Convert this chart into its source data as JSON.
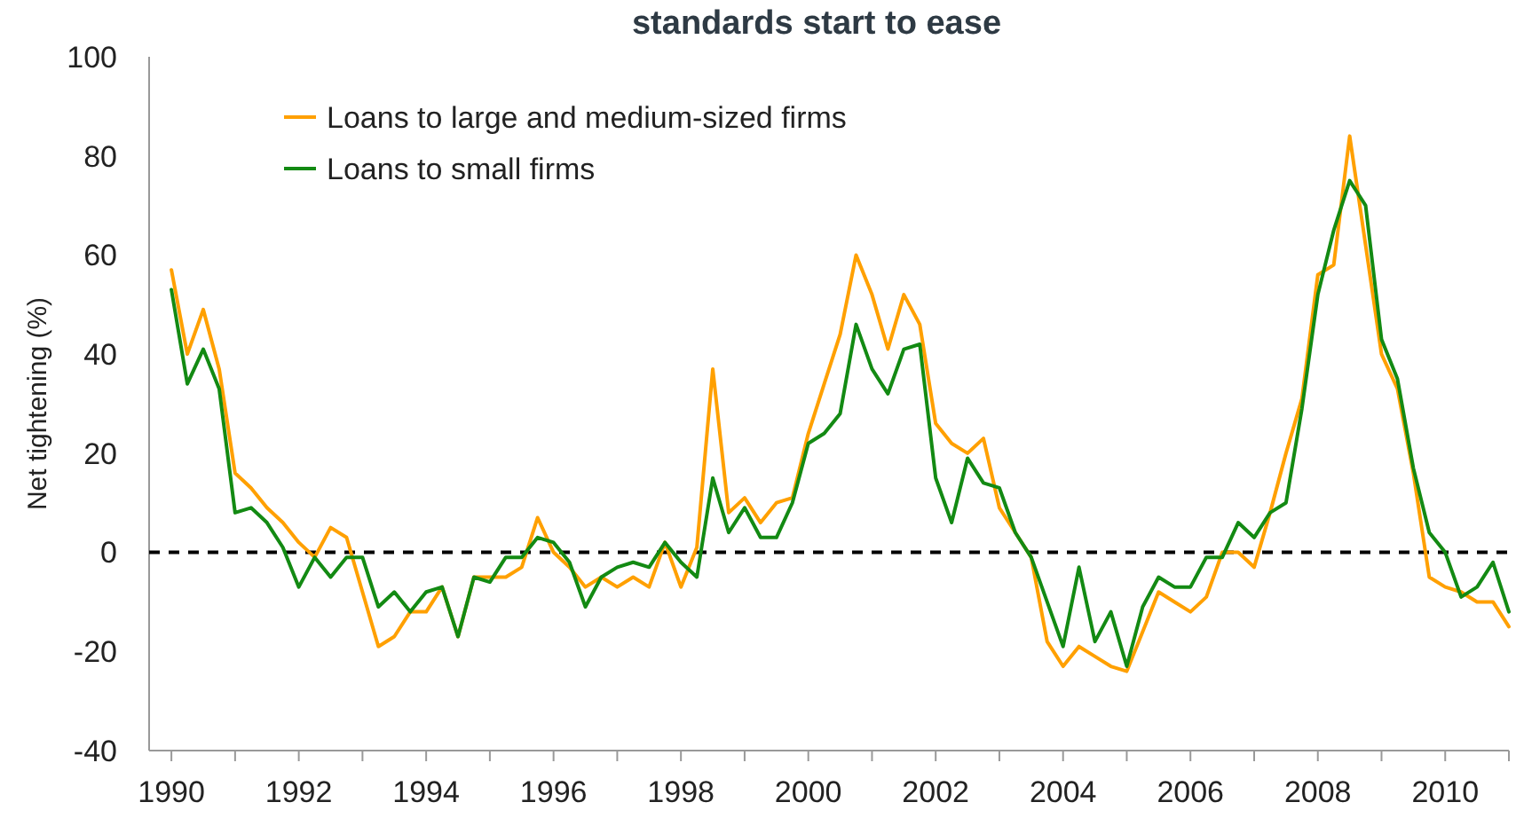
{
  "chart_data": {
    "type": "line",
    "title": "standards start to ease",
    "ylabel": "Net tightening (%)",
    "x": [
      1990,
      1990.25,
      1990.5,
      1990.75,
      1991,
      1991.25,
      1991.5,
      1991.75,
      1992,
      1992.25,
      1992.5,
      1992.75,
      1993,
      1993.25,
      1993.5,
      1993.75,
      1994,
      1994.25,
      1994.5,
      1994.75,
      1995,
      1995.25,
      1995.5,
      1995.75,
      1996,
      1996.25,
      1996.5,
      1996.75,
      1997,
      1997.25,
      1997.5,
      1997.75,
      1998,
      1998.25,
      1998.5,
      1998.75,
      1999,
      1999.25,
      1999.5,
      1999.75,
      2000,
      2000.25,
      2000.5,
      2000.75,
      2001,
      2001.25,
      2001.5,
      2001.75,
      2002,
      2002.25,
      2002.5,
      2002.75,
      2003,
      2003.25,
      2003.5,
      2003.75,
      2004,
      2004.25,
      2004.5,
      2004.75,
      2005,
      2005.25,
      2005.5,
      2005.75,
      2006,
      2006.25,
      2006.5,
      2006.75,
      2007,
      2007.25,
      2007.5,
      2007.75,
      2008,
      2008.25,
      2008.5,
      2008.75,
      2009,
      2009.25,
      2009.5,
      2009.75,
      2010,
      2010.25,
      2010.5,
      2010.75,
      2011
    ],
    "series": [
      {
        "name": "Loans to large and medium-sized firms",
        "color": "#ffa000",
        "values": [
          57,
          40,
          49,
          37,
          16,
          13,
          9,
          6,
          2,
          -1,
          5,
          3,
          -8,
          -19,
          -17,
          -12,
          -12,
          -7,
          -17,
          -5,
          -5,
          -5,
          -3,
          7,
          0,
          -3,
          -7,
          -5,
          -7,
          -5,
          -7,
          2,
          -7,
          1,
          37,
          8,
          11,
          6,
          10,
          11,
          24,
          34,
          44,
          60,
          52,
          41,
          52,
          46,
          26,
          22,
          20,
          23,
          9,
          4,
          -1,
          -18,
          -23,
          -19,
          -21,
          -23,
          -24,
          -16,
          -8,
          -10,
          -12,
          -9,
          0,
          0,
          -3,
          8,
          20,
          31,
          56,
          58,
          84,
          62,
          40,
          33,
          16,
          -5,
          -7,
          -8,
          -10,
          -10,
          -15
        ]
      },
      {
        "name": "Loans to small firms",
        "color": "#138a13",
        "values": [
          53,
          34,
          41,
          33,
          8,
          9,
          6,
          1,
          -7,
          -1,
          -5,
          -1,
          -1,
          -11,
          -8,
          -12,
          -8,
          -7,
          -17,
          -5,
          -6,
          -1,
          -1,
          3,
          2,
          -2,
          -11,
          -5,
          -3,
          -2,
          -3,
          2,
          -2,
          -5,
          15,
          4,
          9,
          3,
          3,
          10,
          22,
          24,
          28,
          46,
          37,
          32,
          41,
          42,
          15,
          6,
          19,
          14,
          13,
          4,
          -1,
          -10,
          -19,
          -3,
          -18,
          -12,
          -23,
          -11,
          -5,
          -7,
          -7,
          -1,
          -1,
          6,
          3,
          8,
          10,
          29,
          52,
          65,
          75,
          70,
          43,
          35,
          17,
          4,
          0,
          -9,
          -7,
          -2,
          -12
        ]
      }
    ],
    "xlim": [
      1989.65,
      2011
    ],
    "xticks": [
      1990,
      {
        "value": 1991,
        "label": null
      },
      1992,
      {
        "value": 1993,
        "label": null
      },
      1994,
      {
        "value": 1995,
        "label": null
      },
      1996,
      {
        "value": 1997,
        "label": null
      },
      1998,
      {
        "value": 1999,
        "label": null
      },
      2000,
      {
        "value": 2001,
        "label": null
      },
      2002,
      {
        "value": 2003,
        "label": null
      },
      2004,
      {
        "value": 2005,
        "label": null
      },
      2006,
      {
        "value": 2007,
        "label": null
      },
      2008,
      {
        "value": 2009,
        "label": null
      },
      2010,
      {
        "value": 2011,
        "label": null
      }
    ],
    "ylim": [
      -40,
      100
    ],
    "yticks": [
      -40,
      -20,
      0,
      20,
      40,
      60,
      80,
      100
    ],
    "ref_lines": [
      {
        "axis": "y",
        "value": 0,
        "color": "#000000",
        "line_style": "dashed"
      }
    ],
    "grid": false,
    "legend": "top left",
    "marker": "none",
    "line_style": "solid"
  }
}
